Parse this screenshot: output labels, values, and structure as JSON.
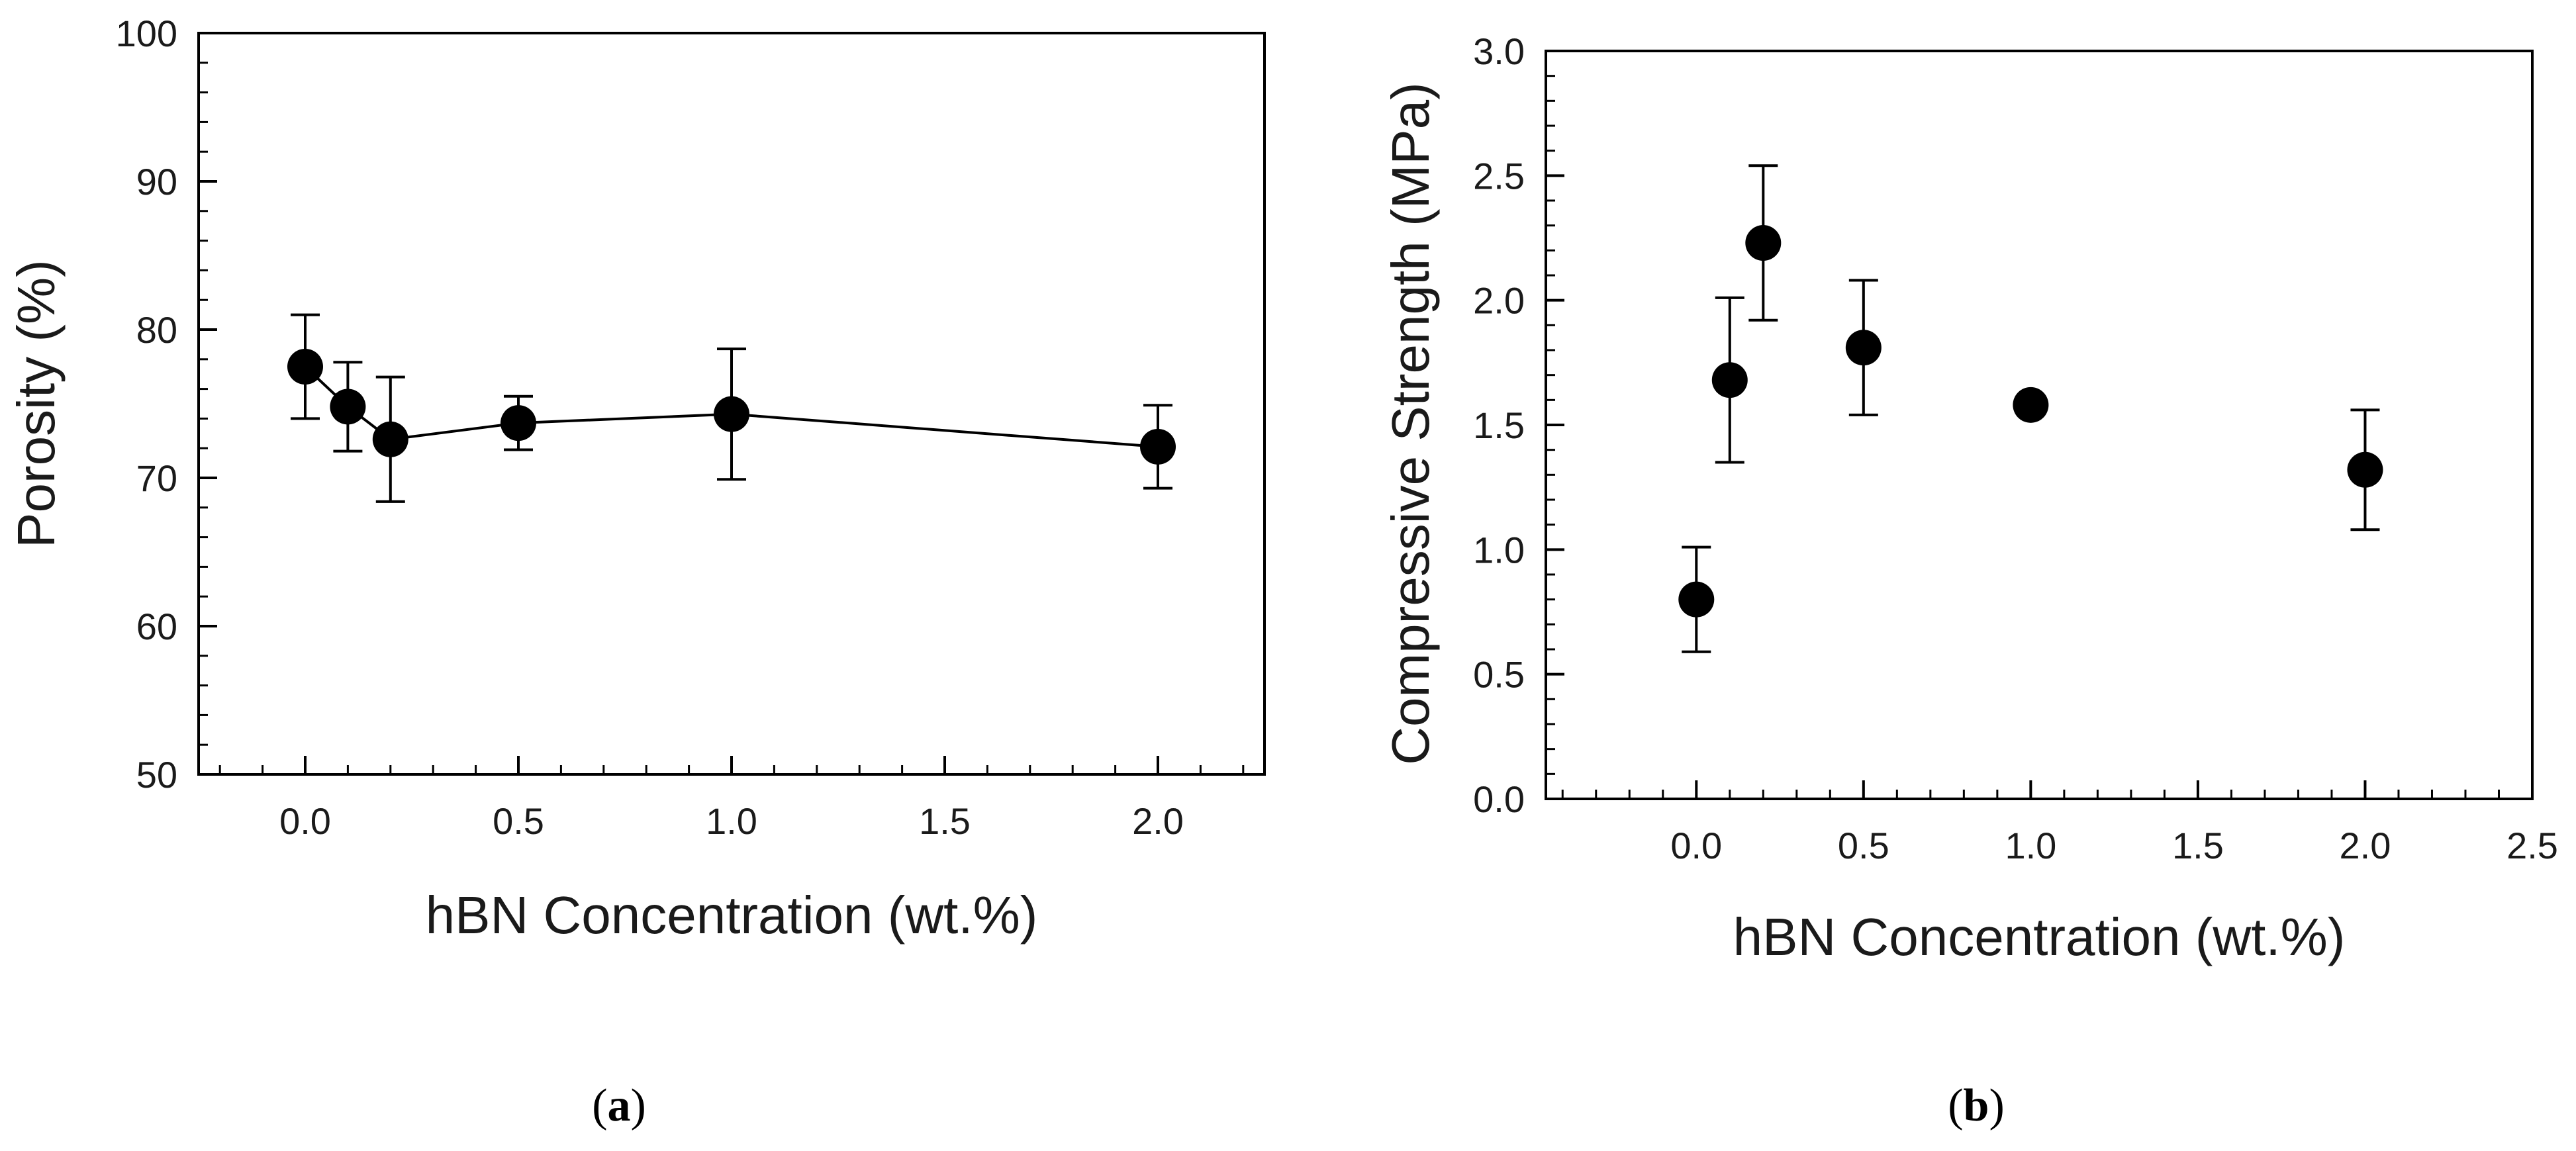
{
  "chart_data": [
    {
      "type": "scatter",
      "panel": "a",
      "panel_label": {
        "open": "(",
        "letter": "a",
        "close": ")"
      },
      "xlabel": "hBN Concentration (wt.%)",
      "ylabel": "Porosity (%)",
      "xlim": [
        -0.25,
        2.25
      ],
      "ylim": [
        50,
        100
      ],
      "xticks": [
        0.0,
        0.5,
        1.0,
        1.5,
        2.0
      ],
      "xtick_labels": [
        "0.0",
        "0.5",
        "1.0",
        "1.5",
        "2.0"
      ],
      "yticks": [
        50,
        60,
        70,
        80,
        90,
        100
      ],
      "ytick_labels": [
        "50",
        "60",
        "70",
        "80",
        "90",
        "100"
      ],
      "x_minor_step": 0.1,
      "y_minor_step": 2,
      "connected": true,
      "series": [
        {
          "name": "Porosity",
          "x": [
            0.0,
            0.1,
            0.2,
            0.5,
            1.0,
            2.0
          ],
          "y": [
            77.5,
            74.8,
            72.6,
            73.7,
            74.3,
            72.1
          ],
          "err": [
            3.5,
            3.0,
            4.2,
            1.8,
            4.4,
            2.8
          ]
        }
      ]
    },
    {
      "type": "scatter",
      "panel": "b",
      "panel_label": {
        "open": "(",
        "letter": "b",
        "close": ")"
      },
      "xlabel": "hBN Concentration (wt.%)",
      "ylabel": "Compressive Strength (MPa)",
      "xlim": [
        -0.45,
        2.5
      ],
      "ylim": [
        0.0,
        3.0
      ],
      "xticks": [
        0.0,
        0.5,
        1.0,
        1.5,
        2.0,
        2.5
      ],
      "xtick_labels": [
        "0.0",
        "0.5",
        "1.0",
        "1.5",
        "2.0",
        "2.5"
      ],
      "yticks": [
        0.0,
        0.5,
        1.0,
        1.5,
        2.0,
        2.5,
        3.0
      ],
      "ytick_labels": [
        "0.0",
        "0.5",
        "1.0",
        "1.5",
        "2.0",
        "2.5",
        "3.0"
      ],
      "x_minor_step": 0.1,
      "y_minor_step": 0.1,
      "connected": false,
      "series": [
        {
          "name": "Compressive Strength",
          "x": [
            0.0,
            0.1,
            0.2,
            0.5,
            1.0,
            2.0
          ],
          "y": [
            0.8,
            1.68,
            2.23,
            1.81,
            1.58,
            1.32
          ],
          "err": [
            0.21,
            0.33,
            0.31,
            0.27,
            0.0,
            0.24
          ]
        }
      ]
    }
  ],
  "colors": {
    "marker": "#000000",
    "axis": "#000000",
    "text": "#1a1a1a",
    "background": "#ffffff"
  }
}
